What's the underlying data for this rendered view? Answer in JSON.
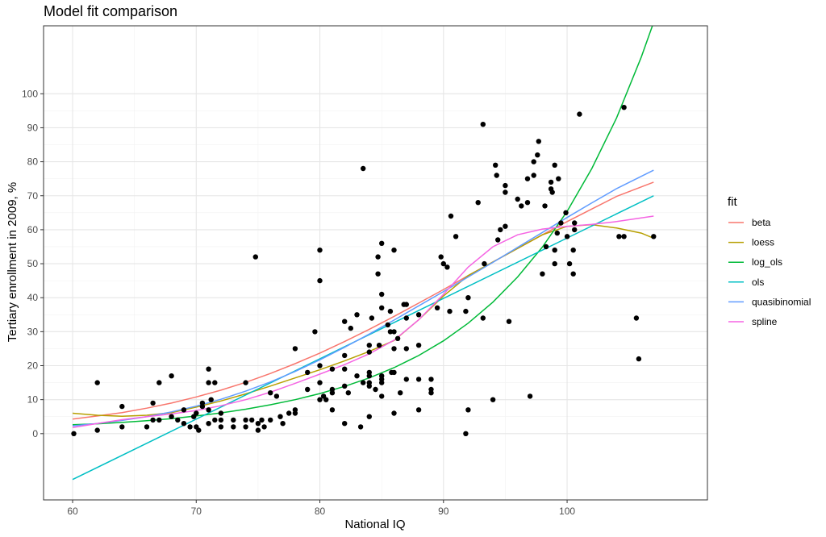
{
  "chart_data": {
    "type": "scatter",
    "title": "Model fit comparison",
    "xlabel": "National IQ",
    "ylabel": "Tertiary enrollment in 2009, %",
    "xlim": [
      57.65,
      111.35
    ],
    "ylim": [
      -19.5,
      120
    ],
    "x_ticks": [
      60,
      70,
      80,
      90,
      100
    ],
    "y_ticks": [
      0,
      10,
      20,
      30,
      40,
      50,
      60,
      70,
      80,
      90,
      100
    ],
    "grid": true,
    "legend_title": "fit",
    "legend_position": "right",
    "points": [
      [
        60.1,
        0
      ],
      [
        62,
        15
      ],
      [
        62,
        1
      ],
      [
        64,
        8
      ],
      [
        64,
        2
      ],
      [
        66,
        2
      ],
      [
        66.5,
        9
      ],
      [
        66.5,
        4
      ],
      [
        67,
        15
      ],
      [
        67,
        4
      ],
      [
        68,
        17
      ],
      [
        68,
        5
      ],
      [
        68.5,
        4
      ],
      [
        69,
        7
      ],
      [
        69,
        3
      ],
      [
        69.5,
        2
      ],
      [
        69.8,
        5
      ],
      [
        70,
        6
      ],
      [
        70,
        2
      ],
      [
        70.2,
        1
      ],
      [
        70.5,
        9
      ],
      [
        70.5,
        8
      ],
      [
        71,
        19
      ],
      [
        71,
        15
      ],
      [
        71,
        7
      ],
      [
        71,
        3
      ],
      [
        71.2,
        10
      ],
      [
        71.5,
        15
      ],
      [
        71.5,
        4
      ],
      [
        72,
        6
      ],
      [
        72,
        4
      ],
      [
        72,
        2
      ],
      [
        73,
        4
      ],
      [
        73,
        2
      ],
      [
        74,
        15
      ],
      [
        74,
        4
      ],
      [
        74,
        2
      ],
      [
        74.5,
        4
      ],
      [
        74.8,
        52
      ],
      [
        75,
        3
      ],
      [
        75,
        1
      ],
      [
        75.3,
        4
      ],
      [
        75.5,
        2
      ],
      [
        76,
        12
      ],
      [
        76,
        4
      ],
      [
        76.5,
        11
      ],
      [
        76.8,
        5
      ],
      [
        77,
        3
      ],
      [
        77.5,
        6
      ],
      [
        78,
        25
      ],
      [
        78,
        7
      ],
      [
        78,
        6
      ],
      [
        79,
        18
      ],
      [
        79,
        13
      ],
      [
        79.6,
        30
      ],
      [
        80,
        54
      ],
      [
        80,
        45
      ],
      [
        80,
        20
      ],
      [
        80,
        15
      ],
      [
        80,
        10
      ],
      [
        80.3,
        11
      ],
      [
        80.5,
        10
      ],
      [
        81,
        19
      ],
      [
        81,
        13
      ],
      [
        81,
        12
      ],
      [
        81,
        7
      ],
      [
        82,
        33
      ],
      [
        82,
        23
      ],
      [
        82,
        19
      ],
      [
        82,
        14
      ],
      [
        82,
        3
      ],
      [
        82.3,
        12
      ],
      [
        82.5,
        31
      ],
      [
        83,
        35
      ],
      [
        83,
        17
      ],
      [
        83.3,
        2
      ],
      [
        83.5,
        78
      ],
      [
        83.5,
        15
      ],
      [
        84,
        26
      ],
      [
        84,
        24
      ],
      [
        84,
        18
      ],
      [
        84,
        17
      ],
      [
        84,
        15
      ],
      [
        84,
        14
      ],
      [
        84,
        5
      ],
      [
        84.2,
        34
      ],
      [
        84.5,
        13
      ],
      [
        84.7,
        52
      ],
      [
        84.7,
        47
      ],
      [
        84.8,
        26
      ],
      [
        85,
        56
      ],
      [
        85,
        41
      ],
      [
        85,
        37
      ],
      [
        85,
        17
      ],
      [
        85,
        16
      ],
      [
        85,
        15
      ],
      [
        85,
        11
      ],
      [
        85.5,
        32
      ],
      [
        85.7,
        36
      ],
      [
        85.7,
        30
      ],
      [
        85.8,
        18
      ],
      [
        86,
        30
      ],
      [
        86,
        18
      ],
      [
        86,
        25
      ],
      [
        86,
        6
      ],
      [
        86,
        54
      ],
      [
        86.3,
        28
      ],
      [
        86.5,
        12
      ],
      [
        86.8,
        38
      ],
      [
        87,
        38
      ],
      [
        87,
        34
      ],
      [
        87,
        25
      ],
      [
        87,
        16
      ],
      [
        88,
        35
      ],
      [
        88,
        26
      ],
      [
        88,
        16
      ],
      [
        88,
        7
      ],
      [
        89,
        16
      ],
      [
        89,
        13
      ],
      [
        89,
        12
      ],
      [
        89.5,
        37
      ],
      [
        89.8,
        52
      ],
      [
        90,
        50
      ],
      [
        90.3,
        49
      ],
      [
        90.5,
        36
      ],
      [
        90.6,
        64
      ],
      [
        91,
        58
      ],
      [
        91.8,
        36
      ],
      [
        91.8,
        0
      ],
      [
        92,
        40
      ],
      [
        92,
        7
      ],
      [
        92.8,
        68
      ],
      [
        93.2,
        91
      ],
      [
        93.2,
        34
      ],
      [
        93.3,
        50
      ],
      [
        94,
        10
      ],
      [
        94.2,
        79
      ],
      [
        94.3,
        76
      ],
      [
        94.4,
        57
      ],
      [
        94.6,
        60
      ],
      [
        95,
        73
      ],
      [
        95,
        71
      ],
      [
        95,
        61
      ],
      [
        95.3,
        33
      ],
      [
        96,
        69
      ],
      [
        96.3,
        67
      ],
      [
        96.8,
        75
      ],
      [
        96.8,
        68
      ],
      [
        97,
        11
      ],
      [
        97.3,
        80
      ],
      [
        97.3,
        76
      ],
      [
        97.6,
        82
      ],
      [
        97.7,
        86
      ],
      [
        98,
        47
      ],
      [
        98.2,
        67
      ],
      [
        98.3,
        55
      ],
      [
        98.7,
        74
      ],
      [
        98.7,
        72
      ],
      [
        98.8,
        71
      ],
      [
        99,
        79
      ],
      [
        99,
        54
      ],
      [
        99,
        50
      ],
      [
        99.2,
        59
      ],
      [
        99.3,
        75
      ],
      [
        99.5,
        62
      ],
      [
        99.9,
        65
      ],
      [
        100,
        58
      ],
      [
        100.2,
        50
      ],
      [
        100.5,
        47
      ],
      [
        100.5,
        54
      ],
      [
        100.6,
        60
      ],
      [
        100.6,
        62
      ],
      [
        101,
        94
      ],
      [
        104.2,
        58
      ],
      [
        104.6,
        58
      ],
      [
        104.6,
        96
      ],
      [
        105.6,
        34
      ],
      [
        105.8,
        22
      ],
      [
        107,
        58
      ]
    ],
    "series": [
      {
        "name": "beta",
        "color": "#F8766D",
        "x": [
          60,
          62,
          64,
          66,
          68,
          70,
          72,
          74,
          76,
          78,
          80,
          82,
          84,
          86,
          88,
          90,
          92,
          94,
          96,
          98,
          100,
          102,
          104,
          107
        ],
        "y": [
          4.3,
          5.2,
          6.2,
          7.5,
          9,
          10.8,
          12.8,
          15.1,
          17.7,
          20.6,
          23.7,
          27.1,
          30.7,
          34.5,
          38.4,
          42.4,
          46.5,
          50.5,
          54.5,
          58.5,
          62.4,
          66.1,
          69.8,
          74
        ]
      },
      {
        "name": "loess",
        "color": "#B79F00",
        "x": [
          60,
          62,
          64,
          66,
          68,
          70,
          72,
          74,
          76,
          78,
          80,
          82,
          84,
          86,
          88,
          90,
          92,
          94,
          96,
          98,
          100,
          102,
          104,
          106,
          107
        ],
        "y": [
          6,
          5.4,
          5.1,
          5.4,
          6.2,
          7.8,
          9.6,
          11.7,
          14,
          16.4,
          18.8,
          21.4,
          24.2,
          27.4,
          33.5,
          40.5,
          46.5,
          50.5,
          54.5,
          58.5,
          61,
          61.5,
          60.5,
          59,
          57.5
        ]
      },
      {
        "name": "log_ols",
        "color": "#00BA38",
        "x": [
          60,
          62,
          64,
          66,
          68,
          70,
          72,
          74,
          76,
          78,
          80,
          82,
          84,
          86,
          88,
          90,
          92,
          94,
          96,
          98,
          100,
          102,
          104,
          106,
          107
        ],
        "y": [
          2.6,
          2.9,
          3.3,
          3.8,
          4.4,
          5.2,
          6.1,
          7.2,
          8.5,
          10,
          11.8,
          13.9,
          16.4,
          19.4,
          23,
          27.3,
          32.5,
          38.7,
          46.1,
          54.9,
          65.4,
          78,
          92.9,
          110.8,
          121
        ]
      },
      {
        "name": "ols",
        "color": "#00BFC4",
        "x": [
          60,
          107
        ],
        "y": [
          -13.5,
          70
        ]
      },
      {
        "name": "quasibinomial",
        "color": "#619CFF",
        "x": [
          60,
          62,
          64,
          66,
          68,
          70,
          72,
          74,
          76,
          78,
          80,
          82,
          84,
          86,
          88,
          90,
          92,
          94,
          96,
          98,
          100,
          102,
          104,
          107
        ],
        "y": [
          2.3,
          3,
          3.9,
          5,
          6.4,
          8.1,
          10.1,
          12.5,
          15.2,
          18.3,
          21.7,
          25.4,
          29.3,
          33.4,
          37.6,
          41.8,
          46.1,
          50.4,
          54.8,
          59.2,
          63.6,
          67.9,
          72.1,
          77.5
        ]
      },
      {
        "name": "spline",
        "color": "#F564E3",
        "x": [
          60,
          62,
          64,
          66,
          68,
          70,
          72,
          74,
          76,
          78,
          80,
          82,
          84,
          86,
          88,
          90,
          92,
          94,
          96,
          98,
          100,
          102,
          104,
          107
        ],
        "y": [
          1.8,
          3,
          4.1,
          5,
          5.8,
          6.8,
          8.2,
          10,
          12.2,
          14.8,
          17.5,
          20.3,
          23.5,
          27.5,
          33.5,
          41,
          49,
          55,
          58.5,
          60.2,
          61,
          61.6,
          62.4,
          64
        ]
      }
    ]
  }
}
